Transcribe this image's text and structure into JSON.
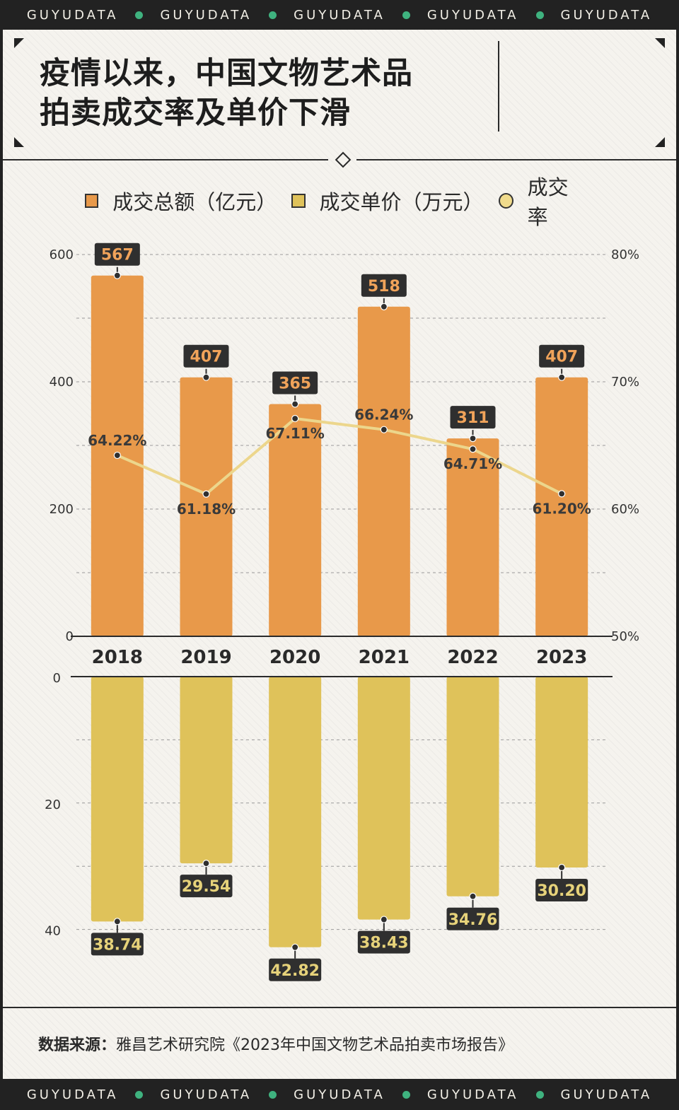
{
  "brand": "GUYUDATA",
  "title_lines": [
    "疫情以来，中国文物艺术品",
    "拍卖成交率及单价下滑"
  ],
  "legend": {
    "total": "成交总额（亿元）",
    "unit_price": "成交单价（万元）",
    "rate": "成交率"
  },
  "colors": {
    "total": "#e8994a",
    "unit_price": "#dfc25a",
    "rate_line": "#ecd68c",
    "rate_marker": "#f0db8c",
    "label_box": "#2f2f2f",
    "total_label_text": "#f0a35a",
    "price_label_text": "#e6d27a"
  },
  "chart_data": {
    "type": "bar",
    "title": "疫情以来，中国文物艺术品拍卖成交率及单价下滑",
    "categories": [
      "2018",
      "2019",
      "2020",
      "2021",
      "2022",
      "2023"
    ],
    "series": [
      {
        "name": "成交总额（亿元）",
        "values": [
          567,
          407,
          365,
          518,
          311,
          407
        ],
        "axis": "left-top"
      },
      {
        "name": "成交率",
        "type": "line",
        "values": [
          64.22,
          61.18,
          67.11,
          66.24,
          64.71,
          61.2
        ],
        "axis": "right-top",
        "unit": "%"
      },
      {
        "name": "成交单价（万元）",
        "values": [
          38.74,
          29.54,
          42.82,
          38.43,
          34.76,
          30.2
        ],
        "axis": "left-bottom-inverted"
      }
    ],
    "value_labels": {
      "total": [
        "567",
        "407",
        "365",
        "518",
        "311",
        "407"
      ],
      "rate": [
        "64.22%",
        "61.18%",
        "67.11%",
        "66.24%",
        "64.71%",
        "61.20%"
      ],
      "unit_price": [
        "38.74",
        "29.54",
        "42.82",
        "38.43",
        "34.76",
        "30.20"
      ]
    },
    "axes": {
      "left_top": {
        "ylim": [
          0,
          600
        ],
        "ticks": [
          "0",
          "200",
          "400",
          "600"
        ]
      },
      "right_top": {
        "ylim": [
          50,
          80
        ],
        "ticks": [
          "50%",
          "60%",
          "70%",
          "80%"
        ]
      },
      "left_bottom": {
        "ylim": [
          0,
          48
        ],
        "ticks": [
          "0",
          "20",
          "40"
        ]
      }
    },
    "grid": true
  },
  "source": {
    "label": "数据来源：",
    "text": "雅昌艺术研究院《2023年中国文物艺术品拍卖市场报告》"
  }
}
